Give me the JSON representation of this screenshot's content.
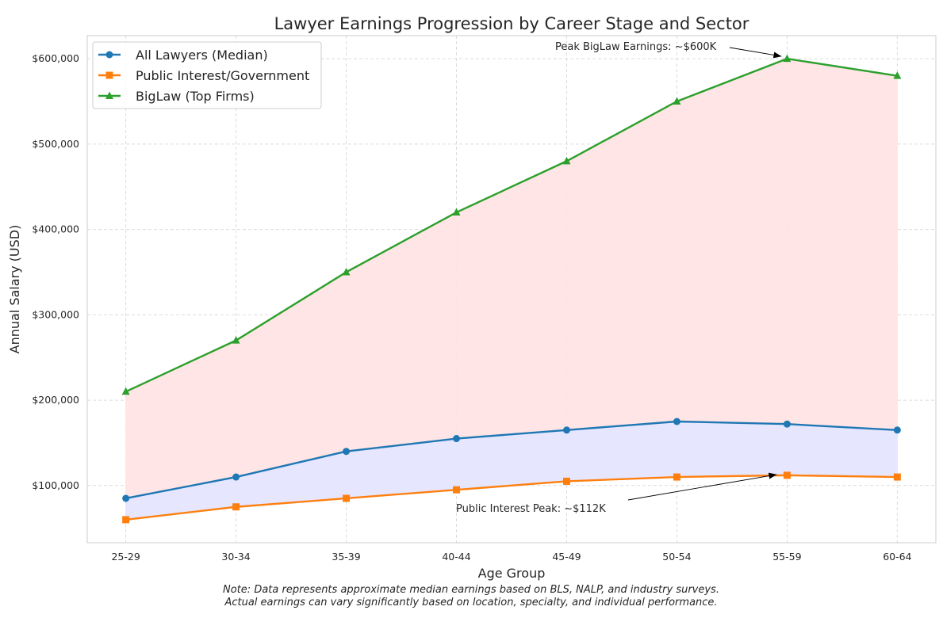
{
  "chart_data": {
    "type": "line",
    "title": "Lawyer Earnings Progression by Career Stage and Sector",
    "xlabel": "Age Group",
    "ylabel": "Annual Salary (USD)",
    "categories": [
      "25-29",
      "30-34",
      "35-39",
      "40-44",
      "45-49",
      "50-54",
      "55-59",
      "60-64"
    ],
    "ylim": [
      33000,
      627000
    ],
    "yticks": [
      100000,
      200000,
      300000,
      400000,
      500000,
      600000
    ],
    "ytick_labels": [
      "$100,000",
      "$200,000",
      "$300,000",
      "$400,000",
      "$500,000",
      "$600,000"
    ],
    "grid": true,
    "legend_placement": "top-left",
    "series": [
      {
        "name": "All Lawyers (Median)",
        "color": "#1f77b4",
        "marker": "circle",
        "values": [
          85000,
          110000,
          140000,
          155000,
          165000,
          175000,
          172000,
          165000
        ]
      },
      {
        "name": "Public Interest/Government",
        "color": "#ff7f0e",
        "marker": "square",
        "values": [
          60000,
          75000,
          85000,
          95000,
          105000,
          110000,
          112000,
          110000
        ]
      },
      {
        "name": "BigLaw (Top Firms)",
        "color": "#2ca02c",
        "marker": "triangle",
        "values": [
          210000,
          270000,
          350000,
          420000,
          480000,
          550000,
          600000,
          580000
        ]
      }
    ],
    "fills": [
      {
        "between": [
          "Public Interest/Government",
          "All Lawyers (Median)"
        ],
        "color": "#e5e5ff"
      },
      {
        "between": [
          "All Lawyers (Median)",
          "BigLaw (Top Firms)"
        ],
        "color": "#ffe4e4"
      }
    ],
    "annotations": [
      {
        "text": "Peak BigLaw Earnings: ~$600K",
        "target_category": "55-59",
        "target_value": 600000
      },
      {
        "text": "Public Interest Peak: ~$112K",
        "target_category": "55-59",
        "target_value": 112000
      }
    ],
    "note": [
      "Note: Data represents approximate median earnings based on BLS, NALP, and industry surveys.",
      "Actual earnings can vary significantly based on location, specialty, and individual performance."
    ]
  }
}
